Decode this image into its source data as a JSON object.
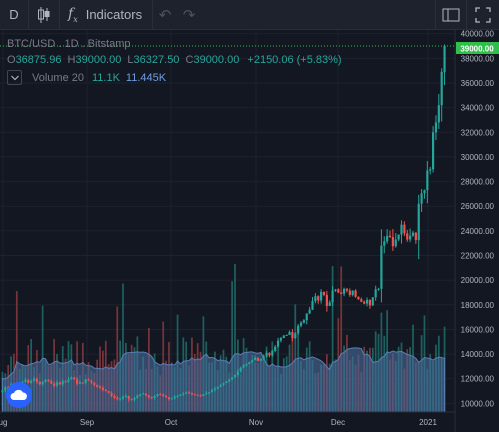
{
  "toolbar": {
    "interval_label": "D",
    "indicators_label": "Indicators"
  },
  "symbol": {
    "name": "BTC/USD",
    "interval": "1D",
    "exchange": "Bitstamp",
    "title": "BTC/USD . 1D . Bitstamp",
    "open_label": "O",
    "open": "36875.96",
    "high_label": "H",
    "high": "39000.00",
    "low_label": "L",
    "low": "36327.50",
    "close_label": "C",
    "close": "39000.00",
    "change": "+2150.06 (+5.83%)"
  },
  "volume": {
    "label": "Volume 20",
    "value": "11.1K",
    "ma_value": "11.445K"
  },
  "price_axis": {
    "ticks": [
      "40000.00",
      "38000.00",
      "36000.00",
      "34000.00",
      "32000.00",
      "30000.00",
      "28000.00",
      "26000.00",
      "24000.00",
      "22000.00",
      "20000.00",
      "18000.00",
      "16000.00",
      "14000.00",
      "12000.00",
      "10000.00"
    ],
    "last_price": "39000.00"
  },
  "time_axis": {
    "labels": [
      "ug",
      "Sep",
      "Oct",
      "Nov",
      "Dec",
      "2021"
    ]
  },
  "colors": {
    "up": "#26a69a",
    "down": "#ef5350",
    "bg": "#131722",
    "volume_ma_fill": "#4a6d9c",
    "last_price_label": "#2fbf4a"
  },
  "chart_data": {
    "type": "candlestick",
    "title": "BTC/USD . 1D . Bitstamp",
    "ylim": [
      9300,
      40300
    ],
    "x_start": "2020-07-28",
    "x_end": "2021-01-07",
    "close": [
      11050,
      11300,
      11200,
      11550,
      11450,
      11200,
      11600,
      11750,
      11900,
      11650,
      11850,
      12000,
      11750,
      11550,
      11750,
      11900,
      11800,
      11600,
      11450,
      11700,
      11550,
      11800,
      11750,
      11950,
      12100,
      11950,
      11600,
      11700,
      11650,
      11950,
      11850,
      11700,
      11500,
      11350,
      11250,
      11100,
      11000,
      10850,
      10600,
      10450,
      10350,
      10400,
      10550,
      10600,
      10350,
      10300,
      10450,
      10650,
      10750,
      10800,
      10650,
      10500,
      10450,
      10600,
      10750,
      10700,
      10600,
      10500,
      10350,
      10400,
      10550,
      10600,
      10700,
      10800,
      10900,
      10850,
      10750,
      10700,
      10650,
      10600,
      10750,
      10850,
      10900,
      11100,
      11200,
      11350,
      11500,
      11650,
      11800,
      11950,
      12100,
      12300,
      12600,
      12900,
      13100,
      13200,
      13350,
      13500,
      13700,
      13450,
      13600,
      13800,
      14100,
      13900,
      14250,
      14600,
      15100,
      15300,
      15500,
      15550,
      15800,
      15300,
      15700,
      16300,
      16550,
      16750,
      17300,
      17600,
      18300,
      18700,
      18350,
      19050,
      18800,
      17900,
      18200,
      19150,
      19250,
      19000,
      18900,
      19300,
      19150,
      18800,
      19150,
      18650,
      18450,
      18250,
      18100,
      18400,
      17950,
      18600,
      19250,
      19300,
      22800,
      23150,
      23600,
      23500,
      22750,
      23300,
      23700,
      24500,
      23800,
      23300,
      23600,
      23850,
      23250,
      26200,
      27050,
      27300,
      28900,
      29000,
      32000,
      32800,
      34200,
      36900,
      39000
    ],
    "open": [
      10900,
      11050,
      11300,
      11200,
      11550,
      11450,
      11200,
      11600,
      11750,
      11900,
      11650,
      11850,
      12000,
      11750,
      11550,
      11750,
      11900,
      11800,
      11600,
      11450,
      11700,
      11550,
      11800,
      11750,
      11950,
      12100,
      11950,
      11600,
      11700,
      11650,
      11950,
      11850,
      11700,
      11500,
      11350,
      11250,
      11100,
      11000,
      10850,
      10600,
      10450,
      10350,
      10400,
      10550,
      10600,
      10350,
      10300,
      10450,
      10650,
      10750,
      10800,
      10650,
      10500,
      10450,
      10600,
      10750,
      10700,
      10600,
      10500,
      10350,
      10400,
      10550,
      10600,
      10700,
      10800,
      10900,
      10850,
      10750,
      10700,
      10650,
      10600,
      10750,
      10850,
      10900,
      11100,
      11200,
      11350,
      11500,
      11650,
      11800,
      11950,
      12100,
      12300,
      12600,
      12900,
      13100,
      13200,
      13350,
      13500,
      13700,
      13450,
      13600,
      13800,
      14100,
      13900,
      14250,
      14600,
      15100,
      15300,
      15500,
      15550,
      15800,
      15300,
      15700,
      16300,
      16550,
      16750,
      17300,
      17600,
      18300,
      18700,
      18350,
      19050,
      18800,
      17900,
      18200,
      19150,
      19250,
      19000,
      18900,
      19300,
      19150,
      18800,
      19150,
      18650,
      18450,
      18250,
      18100,
      18400,
      17950,
      18600,
      19250,
      19300,
      22800,
      23150,
      23600,
      23500,
      22750,
      23300,
      23700,
      24500,
      23800,
      23300,
      23600,
      23850,
      23250,
      26200,
      27050,
      27300,
      28900,
      29000,
      32000,
      32800,
      34200,
      36876
    ],
    "volume_ma_level": 0.43
  }
}
